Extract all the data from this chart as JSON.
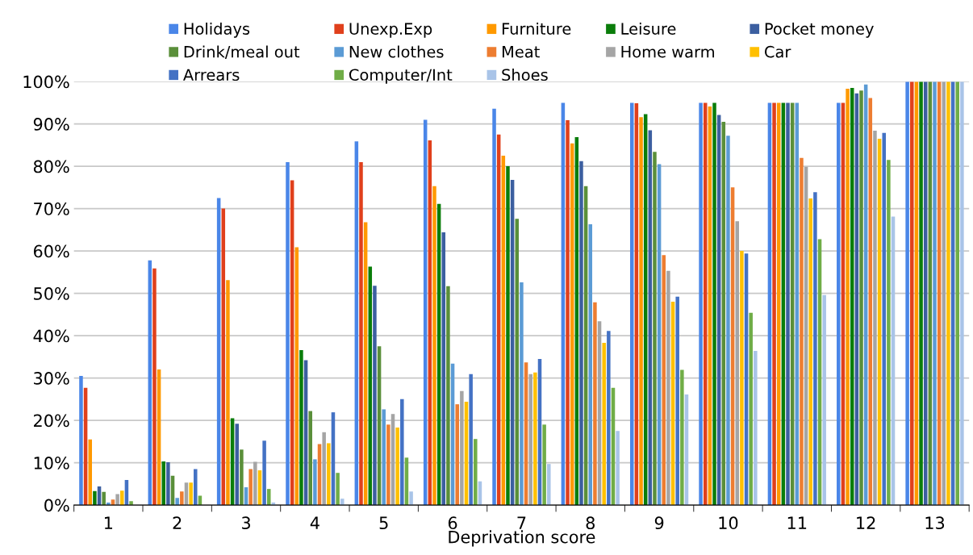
{
  "chart_data": {
    "type": "bar",
    "xlabel": "Deprivation score",
    "categories": [
      "1",
      "2",
      "3",
      "4",
      "5",
      "6",
      "7",
      "8",
      "9",
      "10",
      "11",
      "12",
      "13"
    ],
    "series": [
      {
        "name": "Holidays",
        "color": "#4a86e8",
        "values": [
          30.5,
          57.8,
          72.5,
          81,
          85.9,
          91,
          93.6,
          95,
          95,
          95,
          95,
          95,
          100
        ]
      },
      {
        "name": "Unexp.Exp",
        "color": "#e0401c",
        "values": [
          27.7,
          55.9,
          70,
          76.7,
          81,
          86.1,
          87.5,
          90.9,
          94.9,
          95,
          95,
          95,
          100
        ]
      },
      {
        "name": "Furniture",
        "color": "#ff9900",
        "values": [
          15.5,
          32,
          53.1,
          60.9,
          66.8,
          75.3,
          82.5,
          85.4,
          91.6,
          94.1,
          95,
          98.3,
          100
        ]
      },
      {
        "name": "Leisure",
        "color": "#0a7d0a",
        "values": [
          3.3,
          10.3,
          20.5,
          36.6,
          56.3,
          71.1,
          80,
          86.9,
          92.3,
          95,
          95,
          98.5,
          100
        ]
      },
      {
        "name": "Pocket money",
        "color": "#3c5fa0",
        "values": [
          4.4,
          10.1,
          19.2,
          34.2,
          51.8,
          64.4,
          76.8,
          81.2,
          88.5,
          92.1,
          95,
          97.2,
          100
        ]
      },
      {
        "name": "Drink/meal out",
        "color": "#5a8f3a",
        "values": [
          3.1,
          6.9,
          13.1,
          22.2,
          37.5,
          51.7,
          67.6,
          75.3,
          83.4,
          90.5,
          95,
          97.9,
          100
        ]
      },
      {
        "name": "New clothes",
        "color": "#5b9bd5",
        "values": [
          0.6,
          1.7,
          4.2,
          10.8,
          22.6,
          33.4,
          52.6,
          66.3,
          80.5,
          87.2,
          95,
          99.3,
          100
        ]
      },
      {
        "name": "Meat",
        "color": "#ed7d31",
        "values": [
          1.3,
          3.2,
          8.5,
          14.4,
          19,
          23.8,
          33.7,
          47.9,
          59,
          75,
          82,
          96.1,
          100
        ]
      },
      {
        "name": "Home warm",
        "color": "#a5a5a5",
        "values": [
          2.6,
          5.3,
          10.2,
          17.2,
          21.5,
          26.9,
          30.9,
          43.4,
          55.3,
          67,
          79.9,
          88.4,
          100
        ]
      },
      {
        "name": "Car",
        "color": "#ffc000",
        "values": [
          3.4,
          5.3,
          8.2,
          14.6,
          18.3,
          24.4,
          31.3,
          38.3,
          48,
          60,
          72.4,
          86.5,
          100
        ]
      },
      {
        "name": "Arrears",
        "color": "#4472c4",
        "values": [
          5.9,
          8.5,
          15.2,
          21.9,
          25,
          30.9,
          34.5,
          41.1,
          49.2,
          59.4,
          73.9,
          87.9,
          100
        ]
      },
      {
        "name": "Computer/Int",
        "color": "#70ad47",
        "values": [
          0.9,
          2.2,
          3.8,
          7.6,
          11.2,
          15.6,
          19,
          27.7,
          31.9,
          45.4,
          62.8,
          81.5,
          100
        ]
      },
      {
        "name": "Shoes",
        "color": "#a9c4e8",
        "values": [
          null,
          null,
          0.6,
          1.5,
          3.2,
          5.6,
          9.7,
          17.5,
          26.1,
          36.4,
          49.6,
          68.1,
          100
        ]
      }
    ],
    "ylim": [
      0,
      100
    ],
    "yticks": [
      {
        "value": 0,
        "label": "0%"
      },
      {
        "value": 10,
        "label": "10%"
      },
      {
        "value": 20,
        "label": "20%"
      },
      {
        "value": 30,
        "label": "30%"
      },
      {
        "value": 40,
        "label": "40%"
      },
      {
        "value": 50,
        "label": "50%"
      },
      {
        "value": 60,
        "label": "60%"
      },
      {
        "value": 70,
        "label": "70%"
      },
      {
        "value": 80,
        "label": "80%"
      },
      {
        "value": 90,
        "label": "90%"
      },
      {
        "value": 100,
        "label": "100%"
      }
    ],
    "grid": "y",
    "legend": "top"
  }
}
